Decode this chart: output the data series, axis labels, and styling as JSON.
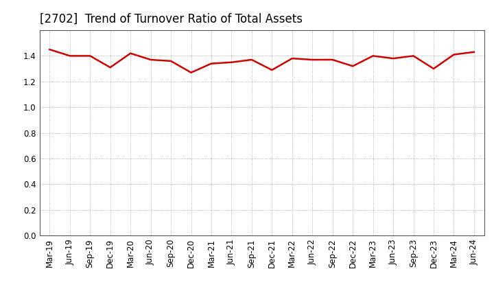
{
  "title": "[2702]  Trend of Turnover Ratio of Total Assets",
  "x_labels": [
    "Mar-19",
    "Jun-19",
    "Sep-19",
    "Dec-19",
    "Mar-20",
    "Jun-20",
    "Sep-20",
    "Dec-20",
    "Mar-21",
    "Jun-21",
    "Sep-21",
    "Dec-21",
    "Mar-22",
    "Jun-22",
    "Sep-22",
    "Dec-22",
    "Mar-23",
    "Jun-23",
    "Sep-23",
    "Dec-23",
    "Mar-24",
    "Jun-24"
  ],
  "values": [
    1.45,
    1.4,
    1.4,
    1.31,
    1.42,
    1.37,
    1.36,
    1.27,
    1.34,
    1.35,
    1.37,
    1.29,
    1.38,
    1.37,
    1.37,
    1.32,
    1.4,
    1.38,
    1.4,
    1.3,
    1.41,
    1.43
  ],
  "ylim": [
    0.0,
    1.6
  ],
  "yticks": [
    0.0,
    0.2,
    0.4,
    0.6,
    0.8,
    1.0,
    1.2,
    1.4
  ],
  "line_color": "#cc0000",
  "line_width": 1.8,
  "bg_color": "#ffffff",
  "grid_color": "#999999",
  "title_fontsize": 12,
  "tick_fontsize": 8.5
}
